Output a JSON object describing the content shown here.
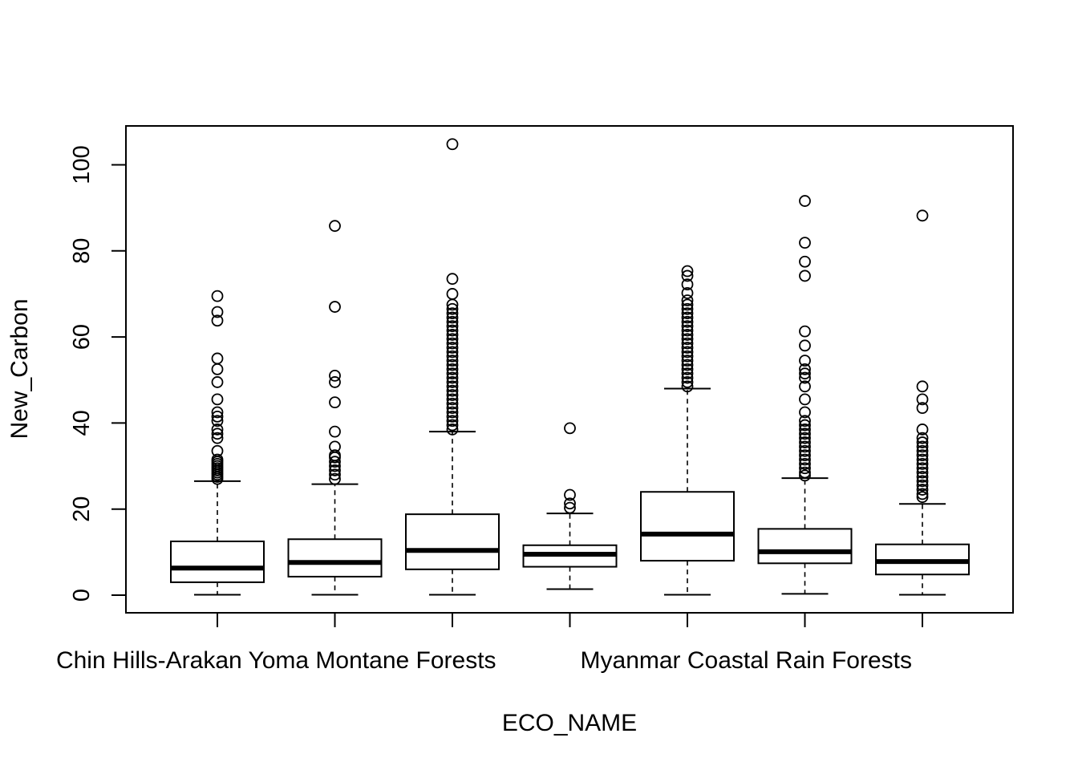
{
  "chart_data": {
    "type": "boxplot",
    "title": "",
    "xlabel": "ECO_NAME",
    "ylabel": "New_Carbon",
    "ylim": [
      -4,
      109
    ],
    "yticks": [
      0,
      20,
      40,
      60,
      80,
      100
    ],
    "grid": false,
    "legend": "none",
    "visible_category_labels": [
      {
        "index": 1,
        "text": "Chin Hills-Arakan Yoma Montane Forests"
      },
      {
        "index": 5,
        "text": "Myanmar Coastal Rain Forests"
      }
    ],
    "boxes": [
      {
        "min": 0.1,
        "q1": 3.0,
        "median": 6.3,
        "q3": 12.5,
        "max": 26.5,
        "outliers": [
          27,
          27.5,
          28,
          28.5,
          29,
          29.5,
          30,
          30.5,
          31,
          31.5,
          33.5,
          36.5,
          37.5,
          38.5,
          40.5,
          41.5,
          42.5,
          45.5,
          49.5,
          52.5,
          55,
          63.8,
          65.8,
          69.5
        ]
      },
      {
        "min": 0.1,
        "q1": 4.3,
        "median": 7.6,
        "q3": 13.0,
        "max": 25.8,
        "outliers": [
          27,
          28,
          29,
          30,
          31,
          32,
          32.5,
          34.5,
          38,
          44.8,
          49.5,
          51,
          67,
          85.8
        ]
      },
      {
        "min": 0.1,
        "q1": 6.0,
        "median": 10.4,
        "q3": 18.8,
        "max": 38.0,
        "outliers": [
          38.5,
          39.5,
          40.5,
          41.5,
          42.5,
          43.5,
          44.5,
          45.5,
          46.5,
          47.5,
          48.5,
          49.5,
          50.5,
          51.5,
          52.5,
          53.5,
          54.5,
          55.5,
          56.5,
          57.5,
          58.5,
          59.5,
          60.5,
          61.5,
          62.5,
          63.5,
          64.5,
          65.5,
          66.5,
          67.5,
          70,
          73.5,
          104.8
        ]
      },
      {
        "min": 1.4,
        "q1": 6.6,
        "median": 9.5,
        "q3": 11.6,
        "max": 19.0,
        "outliers": [
          20.3,
          21.3,
          23.3,
          38.8
        ]
      },
      {
        "min": 0.1,
        "q1": 8.0,
        "median": 14.2,
        "q3": 24.0,
        "max": 48.0,
        "outliers": [
          48.5,
          49.5,
          50.5,
          51.5,
          52.5,
          53.5,
          54.5,
          55.5,
          56.5,
          57.5,
          58.5,
          59.5,
          60.5,
          61.5,
          62.5,
          63.5,
          64.5,
          65.5,
          66.5,
          67.5,
          68.5,
          70.2,
          72.2,
          74.2,
          75.3
        ]
      },
      {
        "min": 0.3,
        "q1": 7.4,
        "median": 10.1,
        "q3": 15.4,
        "max": 27.2,
        "outliers": [
          27.8,
          28.5,
          29.5,
          30.5,
          31.5,
          32.5,
          33.5,
          34.5,
          35.5,
          36.5,
          37.5,
          38.5,
          39.5,
          40.5,
          42.5,
          45.5,
          48.5,
          50.5,
          51.5,
          52.5,
          54.5,
          58,
          61.3,
          74.2,
          77.5,
          81.9,
          91.6
        ]
      },
      {
        "min": 0.1,
        "q1": 4.8,
        "median": 7.8,
        "q3": 11.8,
        "max": 21.2,
        "outliers": [
          22.8,
          23.5,
          24.5,
          25.5,
          26.5,
          27.5,
          28.5,
          29.5,
          30.5,
          31.5,
          32.5,
          33.5,
          34.5,
          35.5,
          36.5,
          38.5,
          43.5,
          45.5,
          48.5,
          88.2
        ]
      }
    ]
  }
}
